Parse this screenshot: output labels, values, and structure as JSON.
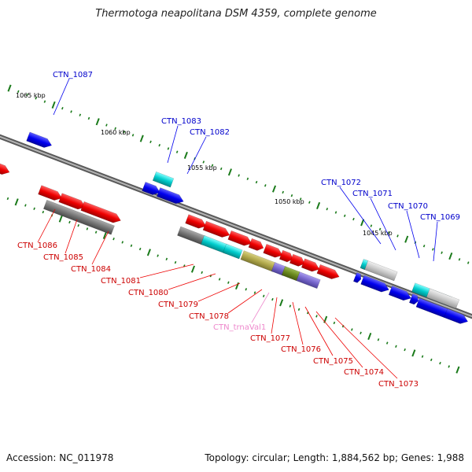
{
  "title": "Thermotoga neapolitana DSM 4359, complete genome",
  "footer": {
    "accession": "Accession: NC_011978",
    "summary": "Topology: circular; Length: 1,884,562 bp; Genes: 1,988"
  },
  "colors": {
    "forward_gene": "#0000ee",
    "reverse_gene": "#ee0000",
    "pseudo_gray": "#777777",
    "light_gray": "#c8c8c8",
    "cyan": "#00cccc",
    "olive": "#b0a84a",
    "dark_olive": "#6b8a1e",
    "lavender": "#7766cc",
    "trna_pink": "#ee88cc",
    "tick_green": "#1a7a1a",
    "backbone": "#808080"
  },
  "scale_labels": [
    "1065 kbp",
    "1060 kbp",
    "1055 kbp",
    "1050 kbp",
    "1045 kbp"
  ],
  "upper_labels": [
    "CTN_1087",
    "CTN_1083",
    "CTN_1082",
    "CTN_1072",
    "CTN_1071",
    "CTN_1070",
    "CTN_1069"
  ],
  "lower_labels": [
    "CTN_1086",
    "CTN_1085",
    "CTN_1084",
    "CTN_1081",
    "CTN_1080",
    "CTN_1079",
    "CTN_1078",
    "CTN_trnaVal1",
    "CTN_1077",
    "CTN_1076",
    "CTN_1075",
    "CTN_1074",
    "CTN_1073"
  ]
}
